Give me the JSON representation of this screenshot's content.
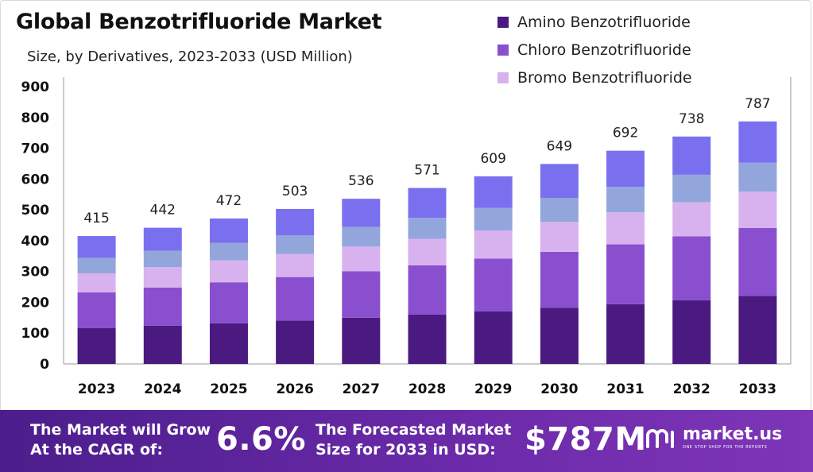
{
  "header": {
    "title": "Global Benzotrifluoride Market",
    "subtitle": "Size, by Derivatives, 2023-2033 (USD Million)"
  },
  "colors": {
    "amino": "#4a1a80",
    "chloro": "#8a4fcf",
    "bromo": "#d8b2ef",
    "segment4": "#93a6dc",
    "segment5": "#7a70ef",
    "footer_bg": "#5b239a"
  },
  "chart_data": {
    "type": "bar",
    "stacked": true,
    "categories": [
      "2023",
      "2024",
      "2025",
      "2026",
      "2027",
      "2028",
      "2029",
      "2030",
      "2031",
      "2032",
      "2033"
    ],
    "totals": [
      415,
      442,
      472,
      503,
      536,
      571,
      609,
      649,
      692,
      738,
      787
    ],
    "series": [
      {
        "name": "Amino Benzotrifluoride",
        "values": [
          116,
          124,
          132,
          141,
          150,
          160,
          171,
          182,
          194,
          207,
          221
        ]
      },
      {
        "name": "Chloro Benzotrifluoride",
        "values": [
          116,
          124,
          133,
          141,
          151,
          160,
          171,
          182,
          194,
          207,
          220
        ]
      },
      {
        "name": "Bromo Benzotrifluoride",
        "values": [
          62,
          66,
          71,
          75,
          80,
          86,
          91,
          97,
          104,
          111,
          118
        ]
      },
      {
        "values": [
          50,
          53,
          57,
          60,
          64,
          68,
          73,
          78,
          83,
          89,
          94
        ]
      },
      {
        "values": [
          71,
          75,
          79,
          86,
          91,
          97,
          103,
          110,
          117,
          124,
          134
        ]
      }
    ],
    "yticks": [
      0,
      100,
      200,
      300,
      400,
      500,
      600,
      700,
      800,
      900
    ],
    "ylim": [
      0,
      900
    ],
    "grid": false,
    "legend_position": "top-right"
  },
  "footer": {
    "cagr_label_line1": "The Market will Grow",
    "cagr_label_line2": "At the CAGR of:",
    "cagr_value": "6.6%",
    "forecast_label_line1": "The Forecasted Market",
    "forecast_label_line2": "Size for 2033 in USD:",
    "forecast_value": "$787M",
    "brand_name": "market.us",
    "brand_tagline": "ONE STOP SHOP FOR THE REPORTS"
  }
}
